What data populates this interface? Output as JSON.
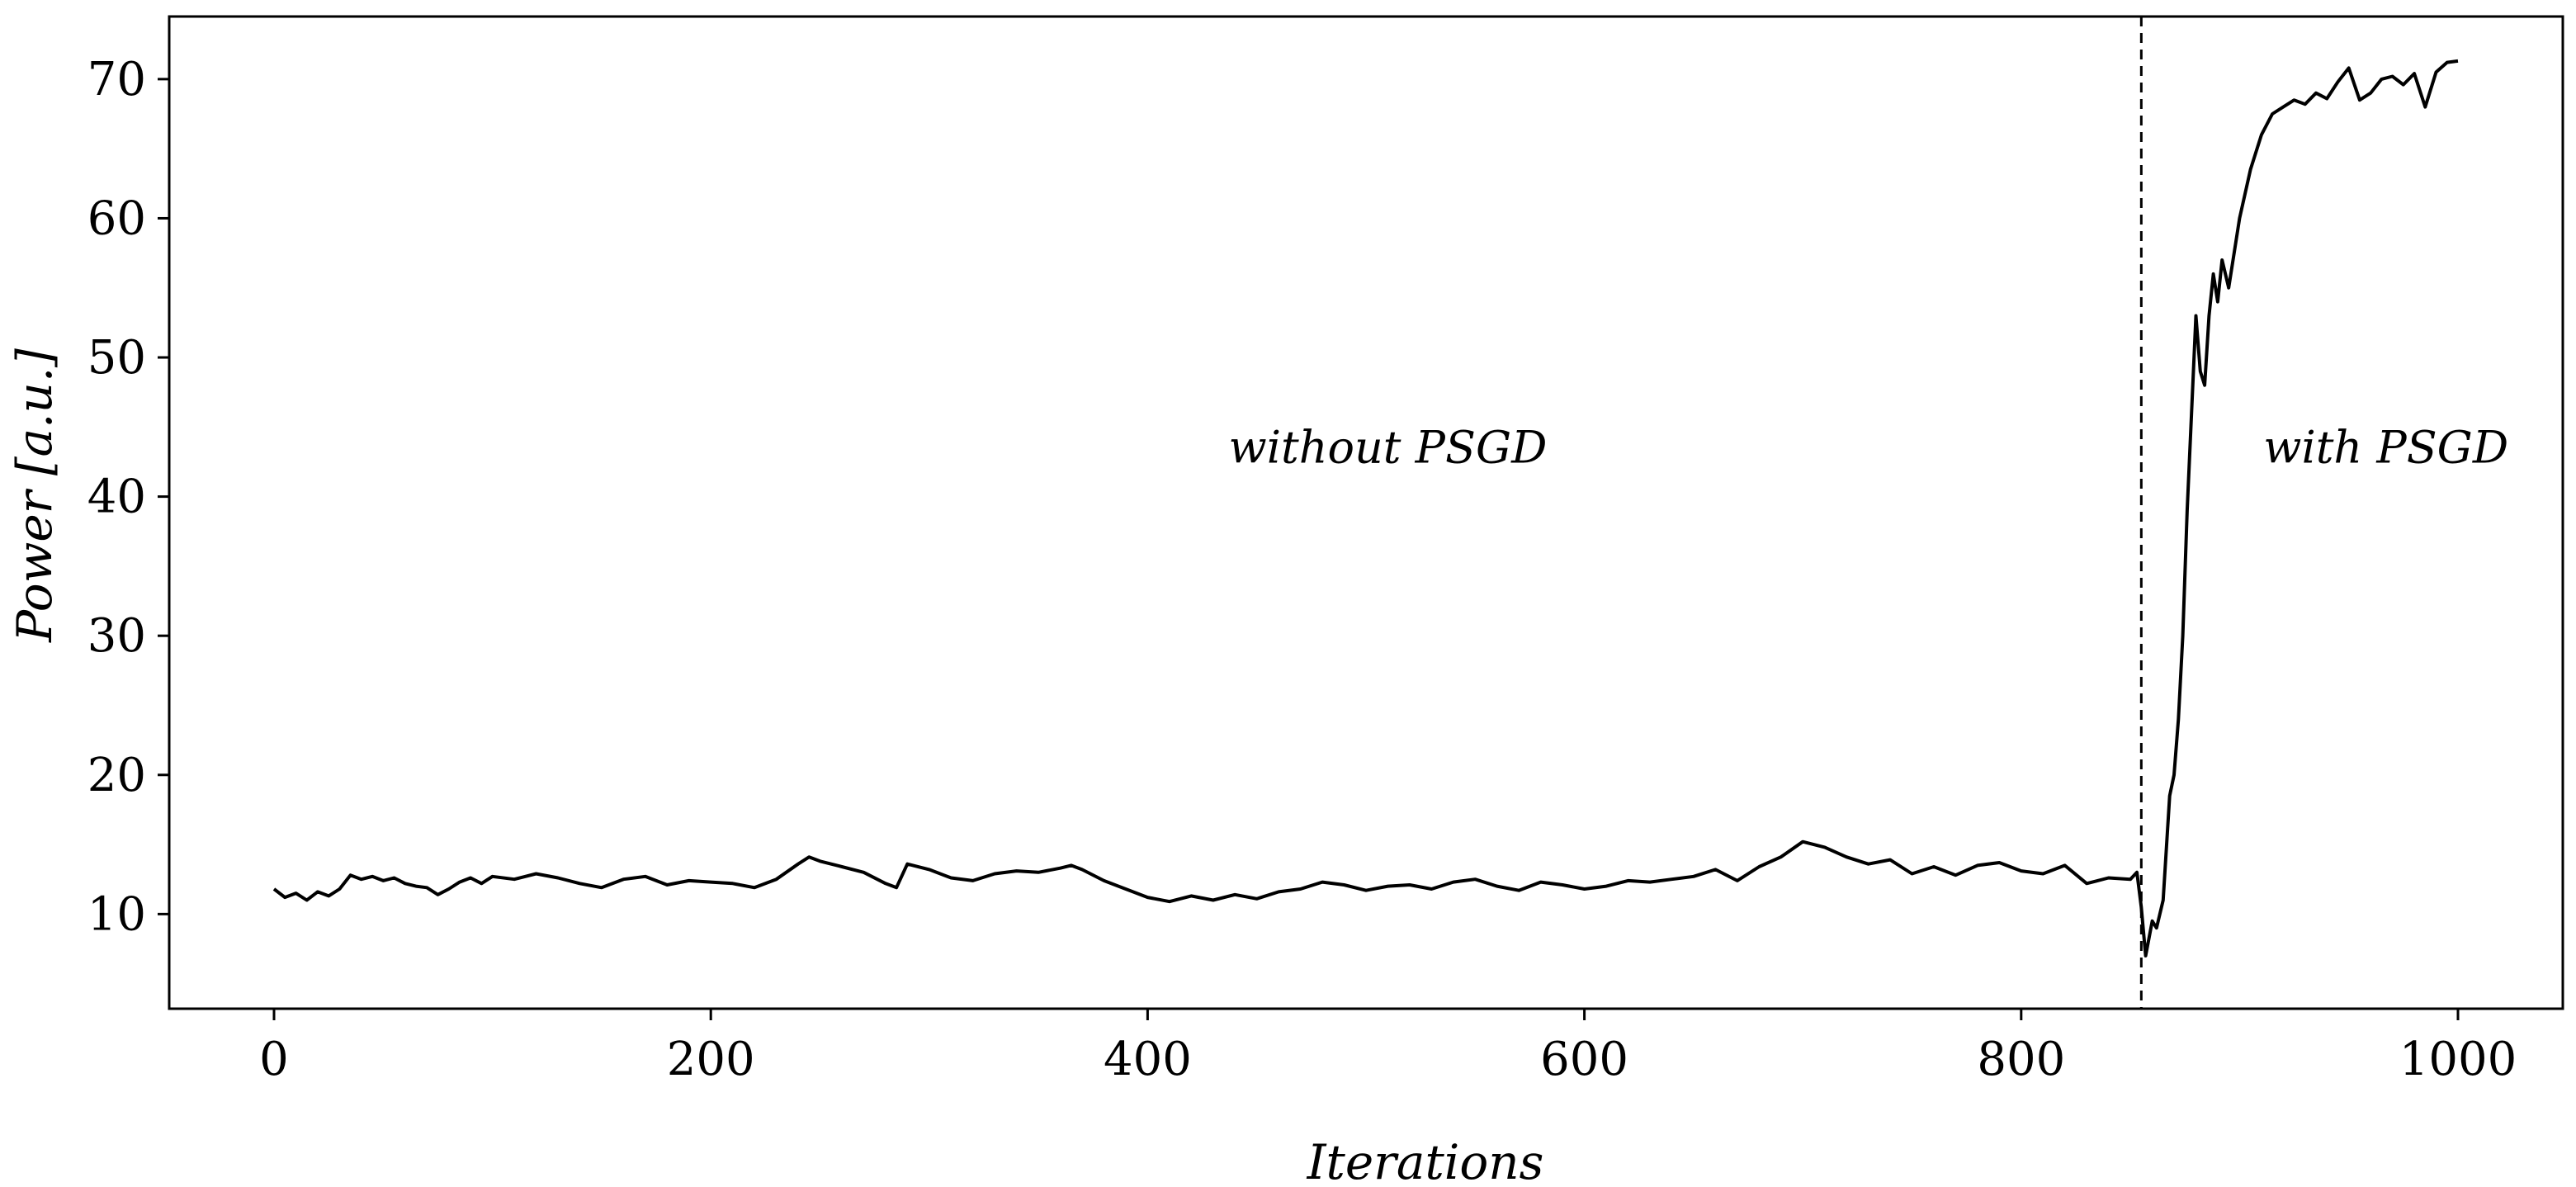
{
  "chart_data": {
    "type": "line",
    "title": "",
    "xlabel": "Iterations",
    "ylabel": "Power [a.u.]",
    "xlim": [
      -48,
      1048
    ],
    "ylim": [
      3.2,
      74.5
    ],
    "xticks": [
      0,
      200,
      400,
      600,
      800,
      1000
    ],
    "yticks": [
      10,
      20,
      30,
      40,
      50,
      60,
      70
    ],
    "xtick_labels": [
      "0",
      "200",
      "400",
      "600",
      "800",
      "1000"
    ],
    "ytick_labels": [
      "10",
      "20",
      "30",
      "40",
      "50",
      "60",
      "70"
    ],
    "grid": false,
    "legend": "none",
    "line_color": "#000000",
    "vertical_line": {
      "x": 855,
      "style": "dashed",
      "color": "#000000"
    },
    "annotations": [
      {
        "text": "without PSGD",
        "x": 510,
        "y": 43.5
      },
      {
        "text": "with PSGD",
        "x": 967,
        "y": 43.5
      }
    ],
    "series": [
      {
        "x": [
          0,
          5,
          10,
          15,
          20,
          25,
          30,
          35,
          40,
          45,
          50,
          55,
          60,
          65,
          70,
          75,
          80,
          85,
          90,
          95,
          100,
          110,
          120,
          130,
          140,
          150,
          160,
          170,
          180,
          190,
          200,
          210,
          220,
          230,
          240,
          245,
          250,
          260,
          270,
          280,
          285,
          290,
          300,
          310,
          320,
          330,
          340,
          350,
          360,
          365,
          370,
          380,
          390,
          400,
          410,
          420,
          430,
          440,
          450,
          460,
          470,
          480,
          490,
          500,
          510,
          520,
          530,
          540,
          550,
          560,
          570,
          580,
          590,
          600,
          610,
          620,
          630,
          640,
          650,
          660,
          670,
          680,
          690,
          700,
          710,
          720,
          730,
          740,
          750,
          760,
          770,
          780,
          790,
          800,
          810,
          820,
          830,
          840,
          850,
          853,
          855,
          857,
          860,
          862,
          865,
          868,
          870,
          872,
          874,
          876,
          878,
          880,
          882,
          884,
          886,
          888,
          890,
          892,
          895,
          900,
          905,
          910,
          915,
          920,
          925,
          930,
          935,
          940,
          945,
          950,
          955,
          960,
          965,
          970,
          975,
          980,
          985,
          990,
          995,
          1000
        ],
        "y": [
          11.8,
          11.2,
          11.5,
          11.0,
          11.6,
          11.3,
          11.8,
          12.8,
          12.5,
          12.7,
          12.4,
          12.6,
          12.2,
          12.0,
          11.9,
          11.4,
          11.8,
          12.3,
          12.6,
          12.2,
          12.7,
          12.5,
          12.9,
          12.6,
          12.2,
          11.9,
          12.5,
          12.7,
          12.1,
          12.4,
          12.3,
          12.2,
          11.9,
          12.5,
          13.6,
          14.1,
          13.8,
          13.4,
          13.0,
          12.2,
          11.9,
          13.6,
          13.2,
          12.6,
          12.4,
          12.9,
          13.1,
          13.0,
          13.3,
          13.5,
          13.2,
          12.4,
          11.8,
          11.2,
          10.9,
          11.3,
          11.0,
          11.4,
          11.1,
          11.6,
          11.8,
          12.3,
          12.1,
          11.7,
          12.0,
          12.1,
          11.8,
          12.3,
          12.5,
          12.0,
          11.7,
          12.3,
          12.1,
          11.8,
          12.0,
          12.4,
          12.3,
          12.5,
          12.7,
          13.2,
          12.4,
          13.4,
          14.1,
          15.2,
          14.8,
          14.1,
          13.6,
          13.9,
          12.9,
          13.4,
          12.8,
          13.5,
          13.7,
          13.1,
          12.9,
          13.5,
          12.2,
          12.6,
          12.5,
          13.0,
          10.5,
          7.0,
          9.5,
          9.0,
          11.0,
          18.5,
          20.0,
          24.0,
          30.0,
          39.0,
          46.0,
          53.0,
          49.0,
          48.0,
          53.0,
          56.0,
          54.0,
          57.0,
          55.0,
          60.0,
          63.5,
          66.0,
          67.5,
          68.0,
          68.5,
          68.2,
          69.0,
          68.6,
          69.8,
          70.8,
          68.5,
          69.0,
          70.0,
          70.2,
          69.6,
          70.4,
          68.0,
          70.5,
          71.2,
          71.3
        ]
      }
    ]
  }
}
